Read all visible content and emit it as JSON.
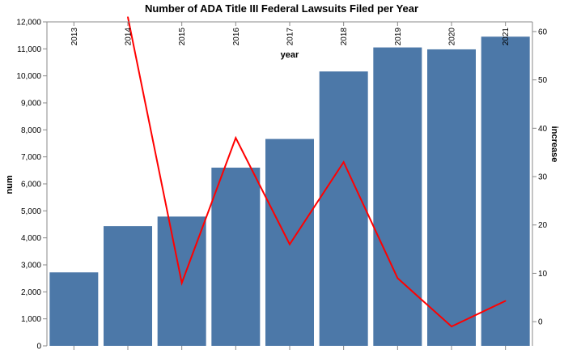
{
  "chart_data": {
    "type": "bar",
    "title": "Number of ADA Title III Federal Lawsuits Filed per Year",
    "xlabel": "year",
    "ylabel": "num",
    "y2label": "increase",
    "categories": [
      "2013",
      "2014",
      "2015",
      "2016",
      "2017",
      "2018",
      "2019",
      "2020",
      "2021"
    ],
    "series": [
      {
        "name": "num",
        "type": "bar",
        "axis": "left",
        "color": "#4c78a8",
        "values": [
          2722,
          4436,
          4789,
          6601,
          7663,
          10163,
          11053,
          10982,
          11452
        ]
      },
      {
        "name": "increase",
        "type": "line",
        "axis": "right",
        "color": "#ff0000",
        "values": [
          null,
          63,
          8,
          38,
          16,
          33,
          9,
          -1,
          4.3
        ]
      }
    ],
    "ylim": [
      0,
      12000
    ],
    "y2lim": [
      -5,
      62
    ],
    "yticks": [
      "0",
      "1,000",
      "2,000",
      "3,000",
      "4,000",
      "5,000",
      "6,000",
      "7,000",
      "8,000",
      "9,000",
      "10,000",
      "11,000",
      "12,000"
    ],
    "y2ticks": [
      "0",
      "10",
      "20",
      "30",
      "40",
      "50",
      "60"
    ],
    "x_axis_position": "top",
    "grid": false
  }
}
